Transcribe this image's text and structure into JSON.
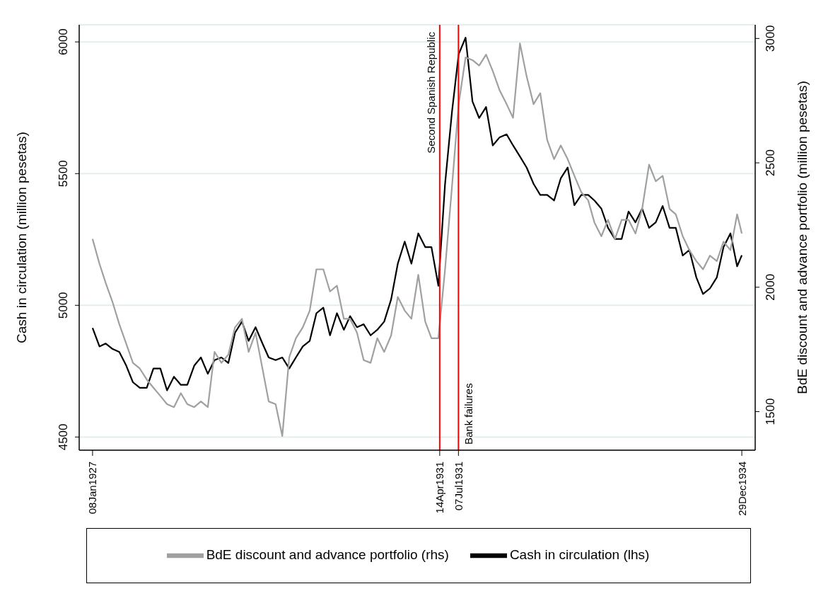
{
  "chart_data": {
    "type": "line",
    "xlabel": null,
    "ylabel": "Cash in circulation (million pesetas)",
    "y2label": "BdE discount and advance portfolio (million pesetas)",
    "x": [
      "1927-01-08",
      "1927-02-08",
      "1927-03-08",
      "1927-04-08",
      "1927-05-08",
      "1927-06-08",
      "1927-07-08",
      "1927-08-08",
      "1927-09-08",
      "1927-10-08",
      "1927-11-08",
      "1927-12-08",
      "1928-01-08",
      "1928-02-08",
      "1928-03-08",
      "1928-04-08",
      "1928-05-08",
      "1928-06-08",
      "1928-07-08",
      "1928-08-08",
      "1928-09-08",
      "1928-10-08",
      "1928-11-08",
      "1928-12-08",
      "1929-01-08",
      "1929-02-08",
      "1929-03-08",
      "1929-04-08",
      "1929-05-08",
      "1929-06-08",
      "1929-07-08",
      "1929-08-08",
      "1929-09-08",
      "1929-10-08",
      "1929-11-08",
      "1929-12-08",
      "1930-01-08",
      "1930-02-08",
      "1930-03-08",
      "1930-04-08",
      "1930-05-08",
      "1930-06-08",
      "1930-07-08",
      "1930-08-08",
      "1930-09-08",
      "1930-10-08",
      "1930-11-08",
      "1930-12-08",
      "1931-01-08",
      "1931-02-08",
      "1931-03-08",
      "1931-04-08",
      "1931-05-08",
      "1931-06-08",
      "1931-07-08",
      "1931-08-08",
      "1931-09-08",
      "1931-10-08",
      "1931-11-08",
      "1931-12-08",
      "1932-01-08",
      "1932-02-08",
      "1932-03-08",
      "1932-04-08",
      "1932-05-08",
      "1932-06-08",
      "1932-07-08",
      "1932-08-08",
      "1932-09-08",
      "1932-10-08",
      "1932-11-08",
      "1932-12-08",
      "1933-01-08",
      "1933-02-08",
      "1933-03-08",
      "1933-04-08",
      "1933-05-08",
      "1933-06-08",
      "1933-07-08",
      "1933-08-08",
      "1933-09-08",
      "1933-10-08",
      "1933-11-08",
      "1933-12-08",
      "1934-01-08",
      "1934-02-08",
      "1934-03-08",
      "1934-04-08",
      "1934-05-08",
      "1934-06-08",
      "1934-07-08",
      "1934-08-08",
      "1934-09-08",
      "1934-10-08",
      "1934-11-08",
      "1934-12-08",
      "1934-12-29"
    ],
    "series": [
      {
        "name": "Cash in circulation (lhs)",
        "color": "#000000",
        "values": [
          4914,
          4844,
          4855,
          4834,
          4823,
          4771,
          4708,
          4687,
          4687,
          4760,
          4760,
          4677,
          4729,
          4698,
          4698,
          4771,
          4802,
          4740,
          4792,
          4802,
          4781,
          4896,
          4938,
          4865,
          4917,
          4855,
          4802,
          4792,
          4802,
          4760,
          4802,
          4844,
          4865,
          4970,
          4991,
          4886,
          4970,
          4907,
          4959,
          4917,
          4928,
          4886,
          4907,
          4938,
          5022,
          5158,
          5242,
          5158,
          5273,
          5221,
          5221,
          5074,
          5461,
          5734,
          5953,
          6016,
          5774,
          5711,
          5753,
          5607,
          5638,
          5649,
          5607,
          5565,
          5523,
          5461,
          5419,
          5419,
          5398,
          5482,
          5523,
          5380,
          5419,
          5419,
          5398,
          5367,
          5294,
          5252,
          5252,
          5356,
          5315,
          5367,
          5294,
          5315,
          5377,
          5294,
          5294,
          5189,
          5210,
          5106,
          5043,
          5064,
          5106,
          5221,
          5273,
          5148,
          5190
        ]
      },
      {
        "name": "BdE discount and advance portfolio (rhs)",
        "color": "#a0a0a0",
        "axis": "y2",
        "values": [
          2194,
          2094,
          2017,
          1939,
          1851,
          1773,
          1696,
          1673,
          1629,
          1596,
          1563,
          1530,
          1518,
          1574,
          1530,
          1518,
          1541,
          1518,
          1740,
          1696,
          1729,
          1839,
          1873,
          1740,
          1817,
          1673,
          1541,
          1530,
          1402,
          1718,
          1795,
          1839,
          1906,
          2072,
          2072,
          1983,
          2006,
          1873,
          1873,
          1817,
          1707,
          1696,
          1795,
          1740,
          1806,
          1961,
          1906,
          1873,
          2050,
          1862,
          1795,
          1795,
          2072,
          2404,
          2736,
          2924,
          2913,
          2891,
          2935,
          2869,
          2791,
          2736,
          2681,
          2980,
          2847,
          2736,
          2780,
          2592,
          2515,
          2570,
          2515,
          2448,
          2382,
          2349,
          2260,
          2205,
          2271,
          2194,
          2271,
          2271,
          2216,
          2315,
          2493,
          2426,
          2448,
          2315,
          2293,
          2205,
          2149,
          2105,
          2072,
          2127,
          2105,
          2183,
          2149,
          2293,
          2216
        ]
      }
    ],
    "xlim": [
      "1926-11-09",
      "1935-02-27"
    ],
    "xticks": [
      {
        "value": "1927-01-08",
        "label": "08Jan1927"
      },
      {
        "value": "1931-04-14",
        "label": "14Apr1931"
      },
      {
        "value": "1931-07-07",
        "label": "07Jul1931"
      },
      {
        "value": "1934-12-29",
        "label": "29Dec1934"
      }
    ],
    "ylim": [
      4450,
      6065
    ],
    "yticks": [
      4500,
      5000,
      5500,
      6000
    ],
    "y2lim": [
      1345,
      3055
    ],
    "y2ticks": [
      1500,
      2000,
      2500,
      3000
    ],
    "ref_lines": [
      {
        "axis": "x",
        "value": "1931-04-14",
        "label": "Second Spanish Republic",
        "color": "#ff0000"
      },
      {
        "axis": "x",
        "value": "1931-07-07",
        "label": "Bank failures",
        "color": "#ff0000"
      }
    ],
    "grid": "y",
    "legend": "bottom"
  }
}
